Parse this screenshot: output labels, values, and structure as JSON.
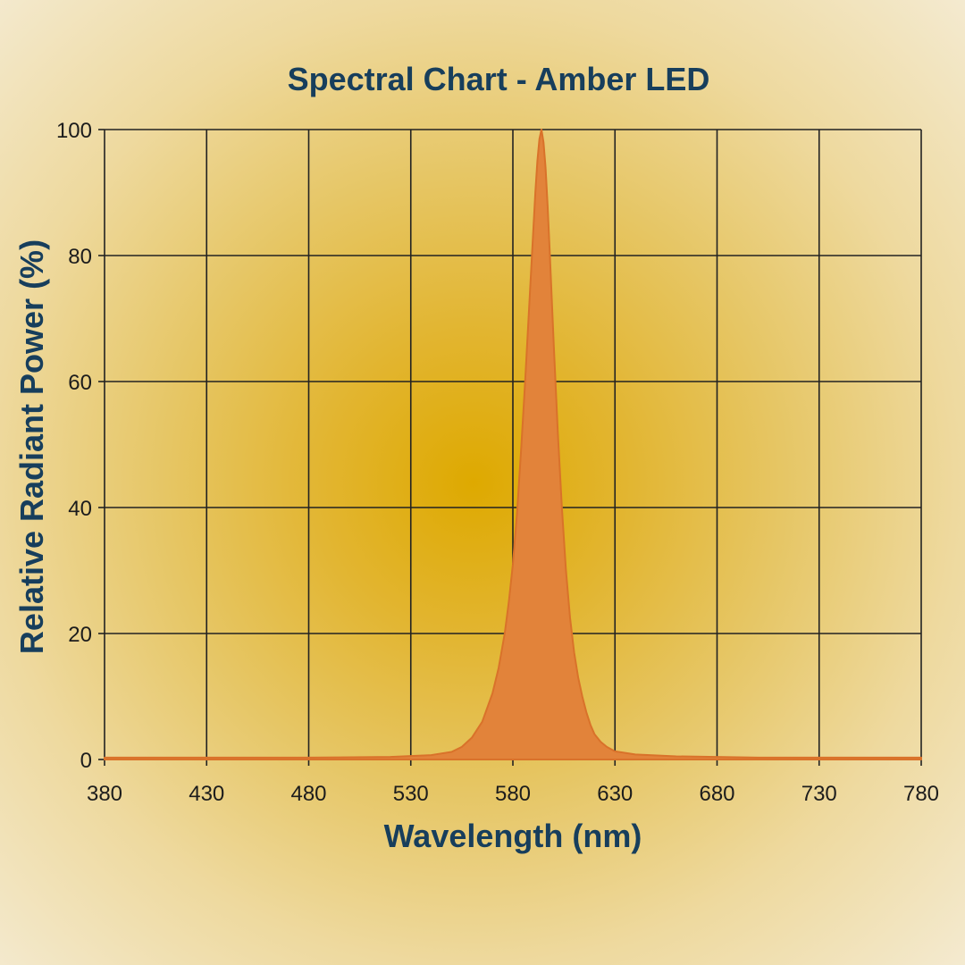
{
  "chart_data": {
    "type": "area",
    "title": "Spectral Chart - Amber LED",
    "xlabel": "Wavelength (nm)",
    "ylabel": "Relative Radiant Power (%)",
    "xlim": [
      380,
      780
    ],
    "ylim": [
      0,
      100
    ],
    "xticks": [
      "380",
      "430",
      "480",
      "530",
      "580",
      "630",
      "680",
      "730",
      "780"
    ],
    "yticks": [
      "0",
      "20",
      "40",
      "60",
      "80",
      "100"
    ],
    "grid": true,
    "legend": "none",
    "colors": {
      "fill": "#e2833a",
      "line": "#d9722a",
      "grid": "#222222",
      "text": "#173e5c"
    },
    "series": [
      {
        "x": [
          380,
          430,
          480,
          520,
          540,
          550,
          555,
          560,
          565,
          570,
          573,
          576,
          578,
          580,
          582,
          584,
          586,
          588,
          590,
          591,
          592,
          593,
          594,
          595,
          596,
          597,
          598,
          600,
          602,
          604,
          606,
          608,
          610,
          612,
          614,
          616,
          618,
          620,
          623,
          626,
          630,
          640,
          660,
          700,
          780
        ],
        "y": [
          0.3,
          0.3,
          0.3,
          0.4,
          0.7,
          1.2,
          2.0,
          3.5,
          6.0,
          10.5,
          14.5,
          20.0,
          25.0,
          31.0,
          39.0,
          49.0,
          60.0,
          72.0,
          84.0,
          90.0,
          95.0,
          98.5,
          100.0,
          98.0,
          94.0,
          88.0,
          81.0,
          66.0,
          52.0,
          40.0,
          30.0,
          22.5,
          17.0,
          13.0,
          10.0,
          7.5,
          5.5,
          4.0,
          2.8,
          2.0,
          1.3,
          0.8,
          0.5,
          0.3,
          0.3
        ]
      }
    ]
  }
}
